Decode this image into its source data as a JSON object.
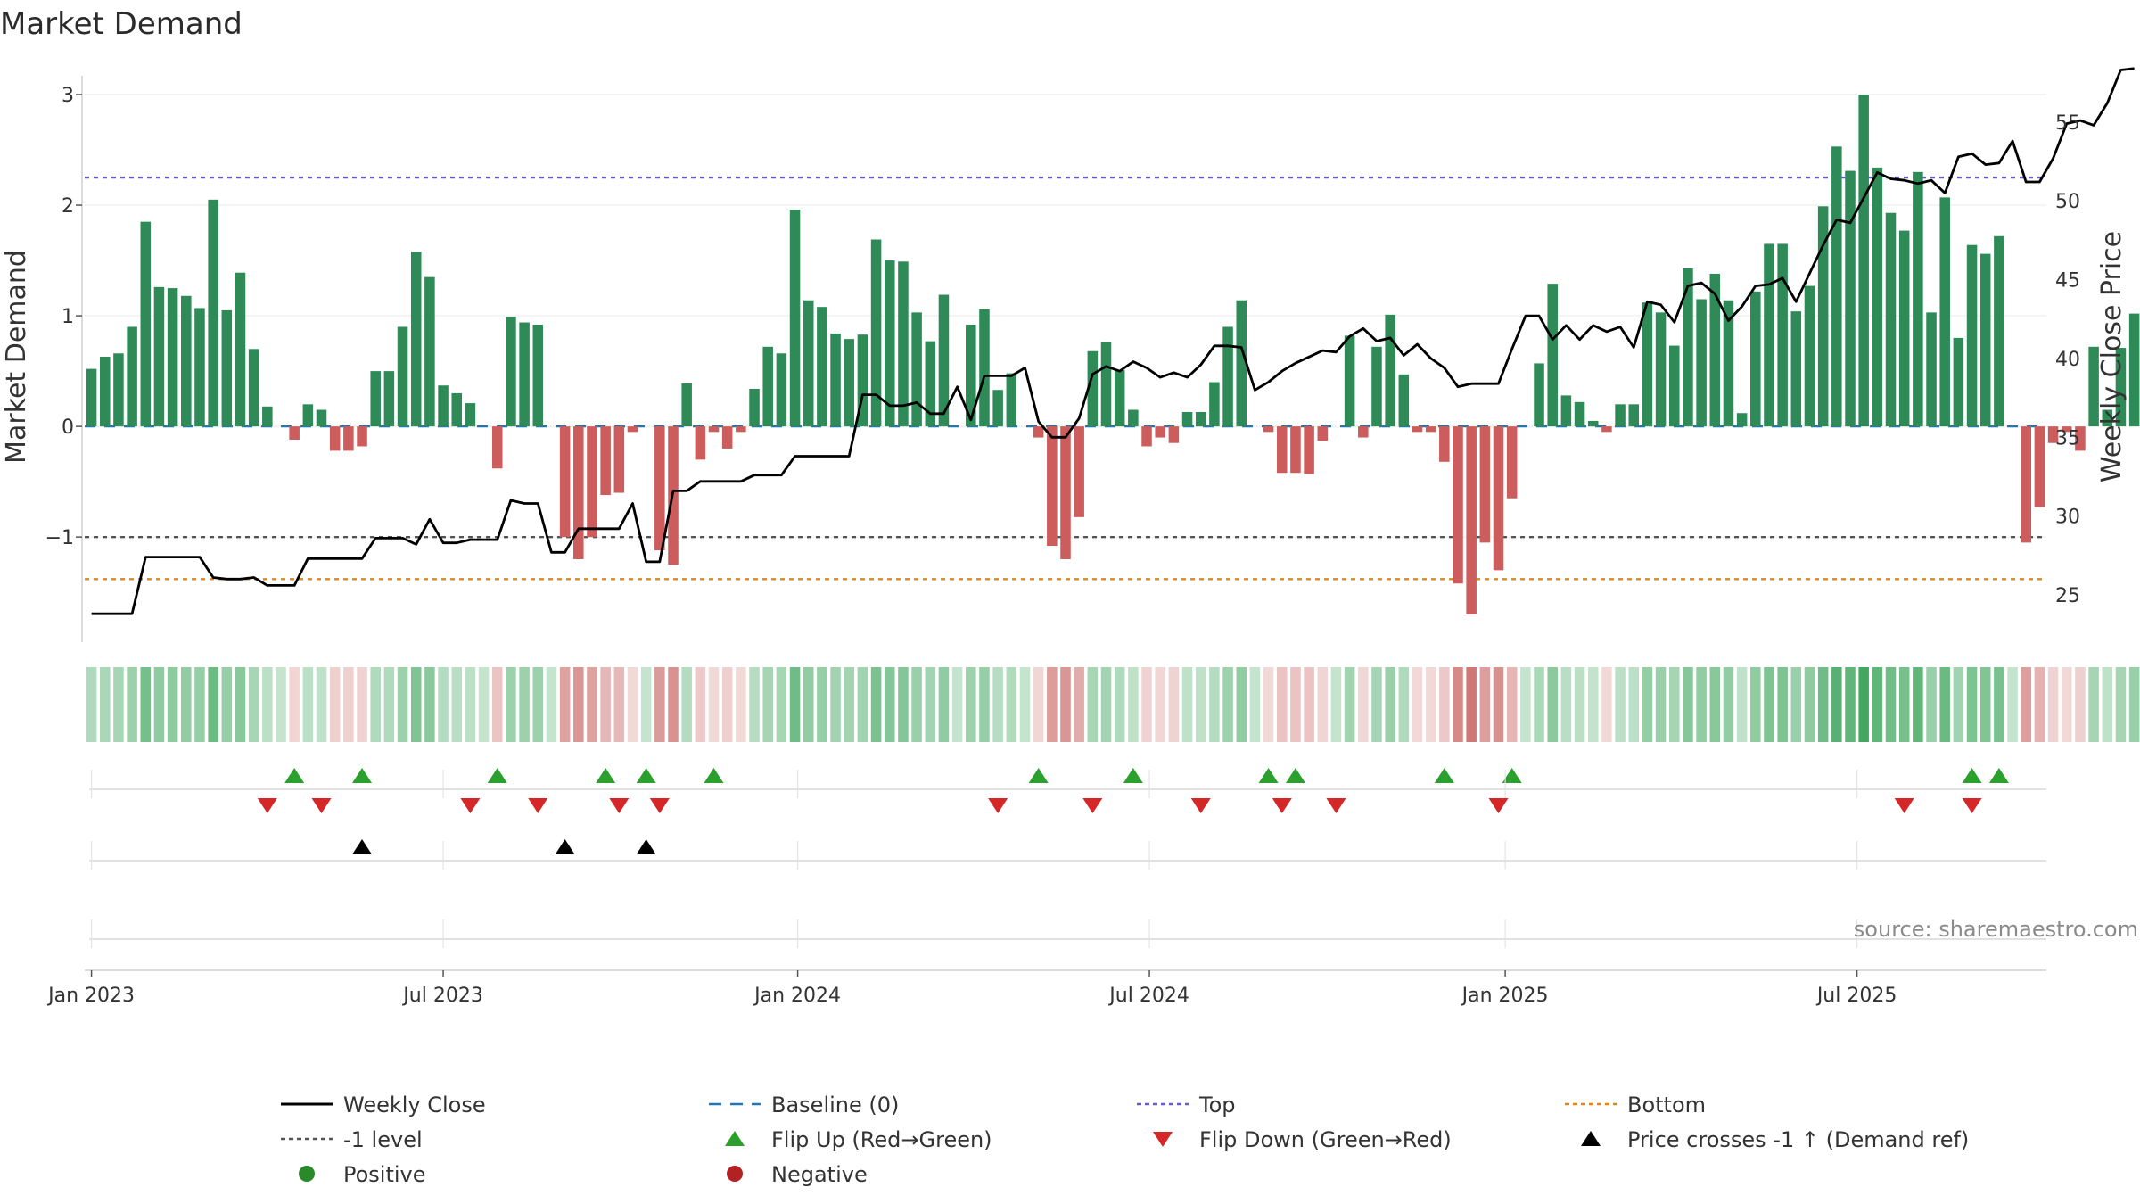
{
  "chart_data": {
    "type": "bar",
    "title": "Market Demand",
    "ylabel": "Market Demand",
    "y2label": "Weekly Close Price",
    "ylim": [
      -1.95,
      3.25
    ],
    "y2lim": [
      22,
      58.5
    ],
    "yticks": [
      3,
      2,
      1,
      0,
      -1
    ],
    "ytick_labels": [
      "3",
      "2",
      "1",
      "0",
      "−1"
    ],
    "y2ticks": [
      55,
      50,
      45,
      40,
      35,
      30,
      25
    ],
    "y2tick_labels": [
      "55",
      "50",
      "45",
      "40",
      "35",
      "30",
      "25"
    ],
    "xtick_labels": [
      "Jan 2023",
      "Jul 2023",
      "Jan 2024",
      "Jul 2024",
      "Jan 2025",
      "Jul 2025"
    ],
    "xtick_weeks": [
      0.5,
      26.5,
      52.7,
      78.7,
      105,
      131
    ],
    "weeks": 145,
    "series": [
      {
        "name": "Market Demand",
        "type": "bar",
        "values": [
          0.52,
          0.63,
          0.66,
          0.9,
          1.85,
          1.26,
          1.25,
          1.18,
          1.07,
          2.05,
          1.05,
          1.39,
          0.7,
          0.18,
          0,
          -0.12,
          0.2,
          0.15,
          -0.22,
          -0.22,
          -0.18,
          0.5,
          0.5,
          0.9,
          1.58,
          1.35,
          0.37,
          0.3,
          0.21,
          0,
          -0.38,
          0.99,
          0.94,
          0.92,
          0,
          -1.0,
          -1.2,
          -1.0,
          -0.62,
          -0.6,
          -0.05,
          0,
          -1.12,
          -1.25,
          0.39,
          -0.3,
          -0.05,
          -0.2,
          -0.05,
          0.34,
          0.72,
          0.66,
          1.96,
          1.14,
          1.08,
          0.84,
          0.79,
          0.83,
          1.69,
          1.5,
          1.49,
          1.03,
          0.77,
          1.19,
          0,
          0.92,
          1.06,
          0.33,
          0.48,
          0,
          -0.1,
          -1.08,
          -1.2,
          -0.82,
          0.68,
          0.76,
          0.51,
          0.15,
          -0.18,
          -0.1,
          -0.15,
          0.13,
          0.13,
          0.4,
          0.9,
          1.14,
          0,
          -0.05,
          -0.42,
          -0.42,
          -0.43,
          -0.13,
          0,
          0.82,
          -0.1,
          0.72,
          1.01,
          0.47,
          -0.05,
          -0.05,
          -0.32,
          -1.42,
          -1.7,
          -1.05,
          -1.3,
          -0.65,
          0,
          0.57,
          1.29,
          0.28,
          0.22,
          0.05,
          -0.05,
          0.2,
          0.2,
          1.12,
          1.03,
          0.73,
          1.43,
          1.15,
          1.38,
          1.14,
          0.12,
          1.22,
          1.65,
          1.65,
          1.04,
          1.27,
          1.99,
          2.53,
          2.31,
          3.0,
          2.34,
          1.93,
          1.77,
          2.3,
          1.03,
          2.07,
          0.8,
          1.64,
          1.56,
          1.72,
          0,
          -1.05,
          -0.73,
          -0.15,
          -0.05,
          -0.22,
          0.72,
          0.15,
          0.71,
          1.02
        ]
      },
      {
        "name": "Weekly Close",
        "type": "line",
        "values": [
          23.8,
          23.8,
          23.8,
          23.8,
          27.4,
          27.4,
          27.4,
          27.4,
          27.4,
          26.1,
          26.0,
          26.0,
          26.1,
          25.6,
          25.6,
          25.6,
          27.3,
          27.3,
          27.3,
          27.3,
          27.3,
          28.6,
          28.6,
          28.6,
          28.2,
          29.8,
          28.3,
          28.3,
          28.5,
          28.5,
          28.5,
          31.0,
          30.8,
          30.8,
          27.7,
          27.7,
          29.2,
          29.2,
          29.2,
          29.2,
          30.8,
          27.1,
          27.1,
          31.6,
          31.6,
          32.2,
          32.2,
          32.2,
          32.2,
          32.6,
          32.6,
          32.6,
          33.8,
          33.8,
          33.8,
          33.8,
          33.8,
          37.7,
          37.7,
          37.0,
          37.0,
          37.2,
          36.5,
          36.5,
          38.2,
          36.1,
          38.9,
          38.9,
          38.9,
          39.4,
          36.0,
          35.0,
          35.0,
          36.2,
          39.0,
          39.5,
          39.2,
          39.8,
          39.4,
          38.8,
          39.1,
          38.8,
          39.6,
          40.8,
          40.8,
          40.7,
          38.0,
          38.5,
          39.2,
          39.7,
          40.1,
          40.5,
          40.4,
          41.4,
          41.9,
          41.1,
          41.3,
          40.2,
          40.9,
          40.0,
          39.4,
          38.2,
          38.4,
          38.4,
          38.4,
          40.6,
          42.7,
          42.7,
          41.2,
          42.1,
          41.2,
          42.1,
          41.7,
          42.0,
          40.7,
          43.6,
          43.4,
          42.3,
          44.6,
          44.8,
          44.1,
          42.4,
          43.3,
          44.6,
          44.7,
          45.1,
          43.6,
          45.4,
          47.2,
          48.8,
          48.6,
          50.2,
          51.8,
          51.4,
          51.3,
          51.1,
          51.3,
          50.5,
          52.8,
          53.0,
          52.3,
          52.4,
          53.8,
          51.2,
          51.2,
          52.7,
          54.9,
          55.1,
          54.8,
          56.2,
          58.3,
          58.4
        ]
      },
      {
        "name": "Baseline (0)",
        "type": "hline",
        "value": 0
      },
      {
        "name": "Top",
        "type": "hline",
        "value": 2.25
      },
      {
        "name": "-1 level",
        "type": "hline",
        "value": -1
      },
      {
        "name": "Bottom",
        "type": "hline",
        "value": -1.38
      }
    ],
    "flip_up_weeks": [
      15.5,
      20.5,
      30.5,
      38.5,
      41.5,
      46.5,
      70.5,
      77.5,
      87.5,
      89.5,
      100.5,
      105.5,
      139.5,
      141.5
    ],
    "flip_down_weeks": [
      13.5,
      17.5,
      28.5,
      33.5,
      39.5,
      42.5,
      67.5,
      74.5,
      82.5,
      88.5,
      92.5,
      104.5,
      134.5,
      139.5
    ],
    "price_cross_weeks": [
      20.5,
      35.5,
      41.5
    ],
    "legend": [
      {
        "label": "Weekly Close",
        "symbol": "line-solid",
        "color": "#000000"
      },
      {
        "label": "Baseline (0)",
        "symbol": "line-dashed",
        "color": "#1f77b4"
      },
      {
        "label": "Top",
        "symbol": "line-dotted",
        "color": "#6a5acd"
      },
      {
        "label": "Bottom",
        "symbol": "line-dotted",
        "color": "#e6850e"
      },
      {
        "label": "-1 level",
        "symbol": "line-dotted",
        "color": "#555555"
      },
      {
        "label": "Flip Up (Red→Green)",
        "symbol": "triangle-up",
        "color": "#2ca02c"
      },
      {
        "label": "Flip Down (Green→Red)",
        "symbol": "triangle-down",
        "color": "#d62728"
      },
      {
        "label": "Price crosses -1 ↑ (Demand ref)",
        "symbol": "triangle-up",
        "color": "#000000"
      },
      {
        "label": "Positive",
        "symbol": "circle",
        "color": "#2a8a2a"
      },
      {
        "label": "Negative",
        "symbol": "circle",
        "color": "#b22222"
      }
    ],
    "source": "source: sharemaestro.com"
  },
  "colors": {
    "positive_bar": "#2e8b57",
    "negative_bar": "#cd5c5c",
    "price_line": "#000000"
  }
}
